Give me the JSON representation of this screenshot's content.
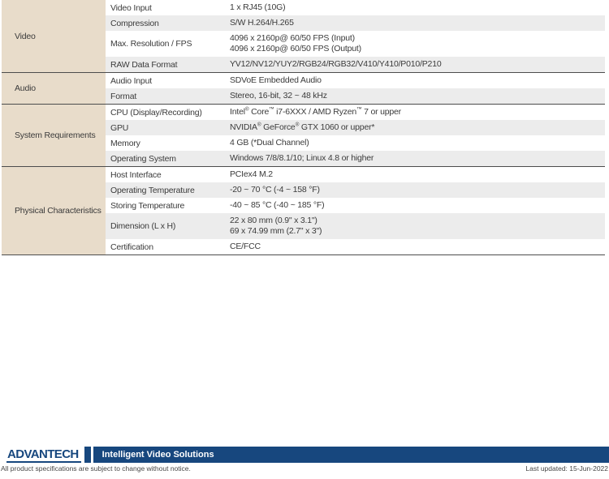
{
  "table": {
    "groups": [
      {
        "category": "Video",
        "rows": [
          {
            "label": "Video Input",
            "value": [
              "1 x RJ45 (10G)"
            ]
          },
          {
            "label": "Compression",
            "value": [
              "S/W H.264/H.265"
            ]
          },
          {
            "label": "Max. Resolution / FPS",
            "value": [
              "4096 x 2160p@ 60/50 FPS (Input)",
              "4096 x 2160p@ 60/50 FPS (Output)"
            ]
          },
          {
            "label": "RAW Data Format",
            "value": [
              "YV12/NV12/YUY2/RGB24/RGB32/V410/Y410/P010/P210"
            ]
          }
        ]
      },
      {
        "category": "Audio",
        "rows": [
          {
            "label": "Audio Input",
            "value": [
              "SDVoE Embedded Audio"
            ]
          },
          {
            "label": "Format",
            "value": [
              "Stereo, 16-bit, 32 ~ 48 kHz"
            ]
          }
        ]
      },
      {
        "category": "System Requirements",
        "rows": [
          {
            "label": "CPU (Display/Recording)",
            "value": [
              "Intel® Core™ i7-6XXX / AMD Ryzen™ 7 or upper"
            ]
          },
          {
            "label": "GPU",
            "value": [
              "NVIDIA® GeForce® GTX 1060 or upper*"
            ]
          },
          {
            "label": "Memory",
            "value": [
              "4 GB (*Dual Channel)"
            ]
          },
          {
            "label": "Operating System",
            "value": [
              "Windows 7/8/8.1/10; Linux 4.8 or higher"
            ]
          }
        ]
      },
      {
        "category": "Physical Characteristics",
        "rows": [
          {
            "label": "Host Interface",
            "value": [
              "PCIex4 M.2"
            ]
          },
          {
            "label": "Operating Temperature",
            "value": [
              "-20 ~ 70 °C (-4 ~ 158 °F)"
            ]
          },
          {
            "label": "Storing Temperature",
            "value": [
              "-40 ~ 85 °C (-40 ~ 185 °F)"
            ]
          },
          {
            "label": "Dimension (L x H)",
            "value": [
              "22 x 80 mm (0.9\" x 3.1\")",
              "69 x 74.99 mm (2.7\" x 3\")"
            ]
          },
          {
            "label": "Certification",
            "value": [
              "CE/FCC"
            ]
          }
        ]
      }
    ]
  },
  "footer": {
    "logo_text": "ADVANTECH",
    "tagline": "Intelligent Video Solutions",
    "disclaimer": "All product specifications are subject to change without notice.",
    "last_updated": "Last updated: 15-Jun-2022"
  },
  "colors": {
    "brand_blue": "#17477e",
    "category_bg": "#e8dcca",
    "row_alt_bg": "#ececec",
    "separator": "#4c4c4c"
  }
}
